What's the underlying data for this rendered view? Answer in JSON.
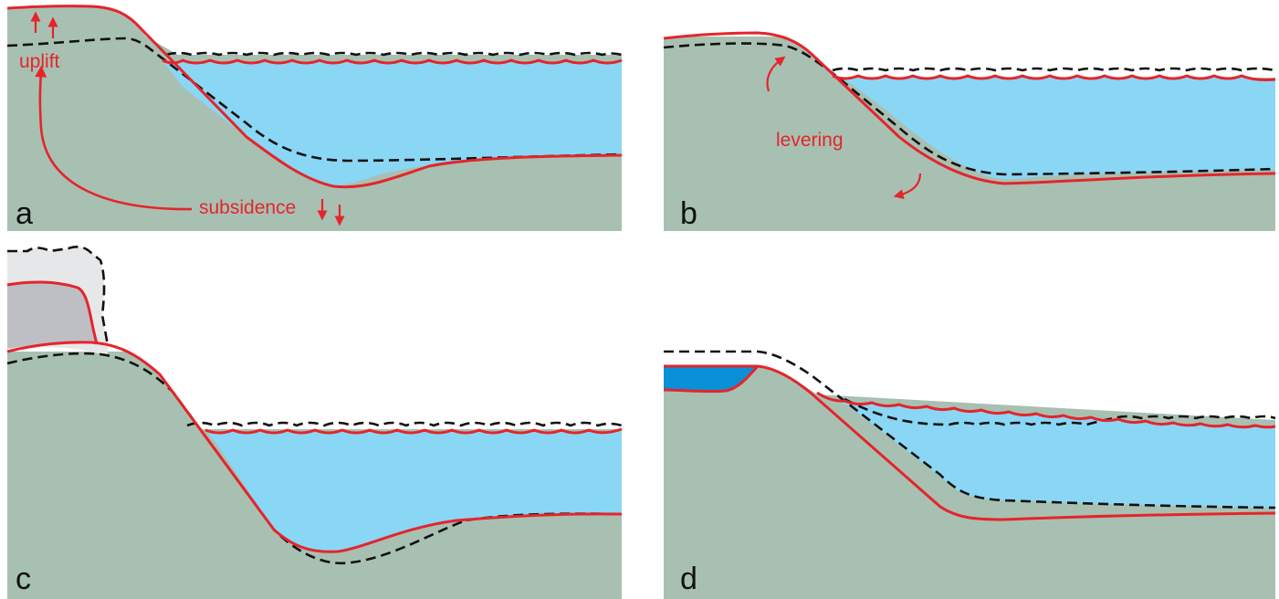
{
  "colors": {
    "land": "#a8c0b2",
    "ocean": "#8ad6f5",
    "lake": "#0a90d6",
    "ice": "#bebfc4",
    "ice_former": "#e6e7e9",
    "present_line": "#e4252b",
    "former_line": "#111111",
    "label": "#e4252b",
    "panel_letter": "#111111"
  },
  "panels": [
    {
      "id": "a",
      "letter": "a",
      "labels": {
        "uplift": "uplift",
        "subsidence": "subsidence"
      }
    },
    {
      "id": "b",
      "letter": "b",
      "labels": {
        "levering": "levering"
      }
    },
    {
      "id": "c",
      "letter": "c",
      "labels": {}
    },
    {
      "id": "d",
      "letter": "d",
      "labels": {}
    }
  ],
  "legend_semantics": {
    "solid_red": "present-day surface",
    "dashed_black": "former surface"
  }
}
